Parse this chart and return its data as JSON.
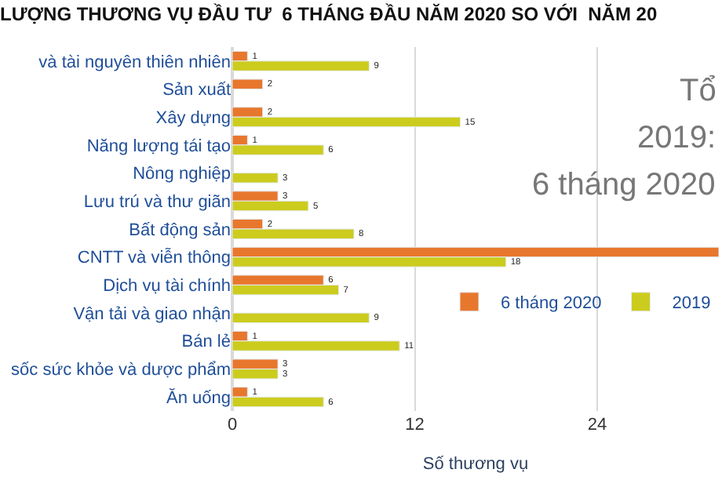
{
  "chart_data": {
    "type": "bar",
    "orientation": "horizontal",
    "title": "LƯỢNG THƯƠNG VỤ ĐẦU TƯ  6 THÁNG ĐẦU NĂM 2020 SO VỚI  NĂM 20",
    "xlabel": "Số thương vụ",
    "categories": [
      "và tài nguyên thiên nhiên",
      "Sản xuất",
      "Xây dựng",
      "Năng lượng tái tạo",
      "Nông nghiệp",
      "Lưu trú và thư giãn",
      "Bất động sản",
      "CNTT và viễn thông",
      "Dịch vụ tài chính",
      "Vận tải và giao nhận",
      "Bán lẻ",
      "sốc sức khỏe và dược phẩm",
      "Ăn uống"
    ],
    "series": [
      {
        "name": "6 tháng 2020",
        "color": "#e8772e",
        "values": [
          1,
          2,
          2,
          1,
          null,
          3,
          2,
          32,
          6,
          null,
          1,
          3,
          1
        ],
        "value_labels": [
          "1",
          "2",
          "2",
          "1",
          null,
          "3",
          "2",
          null,
          "6",
          null,
          "1",
          "3",
          "1"
        ]
      },
      {
        "name": "2019",
        "color": "#cccc1e",
        "values": [
          9,
          null,
          15,
          6,
          3,
          5,
          8,
          18,
          7,
          9,
          11,
          3,
          6
        ],
        "value_labels": [
          "9",
          null,
          "15",
          "6",
          "3",
          "5",
          "8",
          "18",
          "7",
          "9",
          "11",
          "3",
          "6"
        ]
      }
    ],
    "xlim": [
      0,
      32
    ],
    "xticks": [
      0,
      12,
      24
    ],
    "grid": "x",
    "legend": "right",
    "annotations": [
      "Tổ",
      "2019:",
      "6 tháng 2020"
    ]
  }
}
